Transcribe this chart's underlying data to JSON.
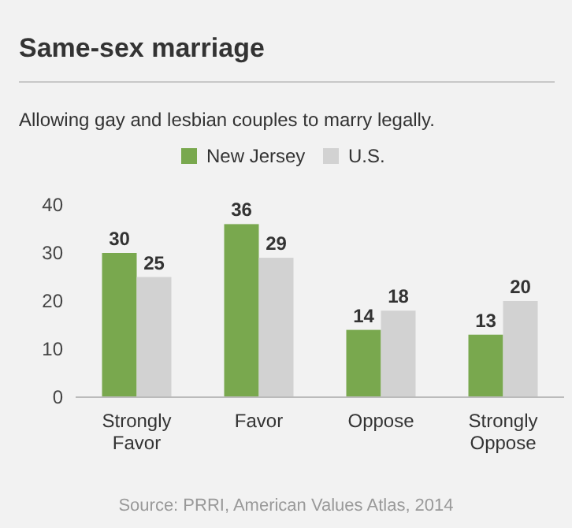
{
  "chart_data": {
    "type": "bar",
    "title": "Same-sex marriage",
    "subtitle": "Allowing gay and lesbian couples to marry legally.",
    "categories": [
      "Strongly\nFavor",
      "Favor",
      "Oppose",
      "Strongly\nOppose"
    ],
    "series": [
      {
        "name": "New Jersey",
        "color": "#79a84e",
        "values": [
          30,
          36,
          14,
          13
        ]
      },
      {
        "name": "U.S.",
        "color": "#d2d2d2",
        "values": [
          25,
          29,
          18,
          20
        ]
      }
    ],
    "ylim": [
      0,
      40
    ],
    "yticks": [
      0,
      10,
      20,
      30,
      40
    ],
    "grid": false,
    "legend": "top",
    "data_labels": true,
    "annotations": [
      "Source: PRRI, American Values Atlas, 2014"
    ]
  }
}
